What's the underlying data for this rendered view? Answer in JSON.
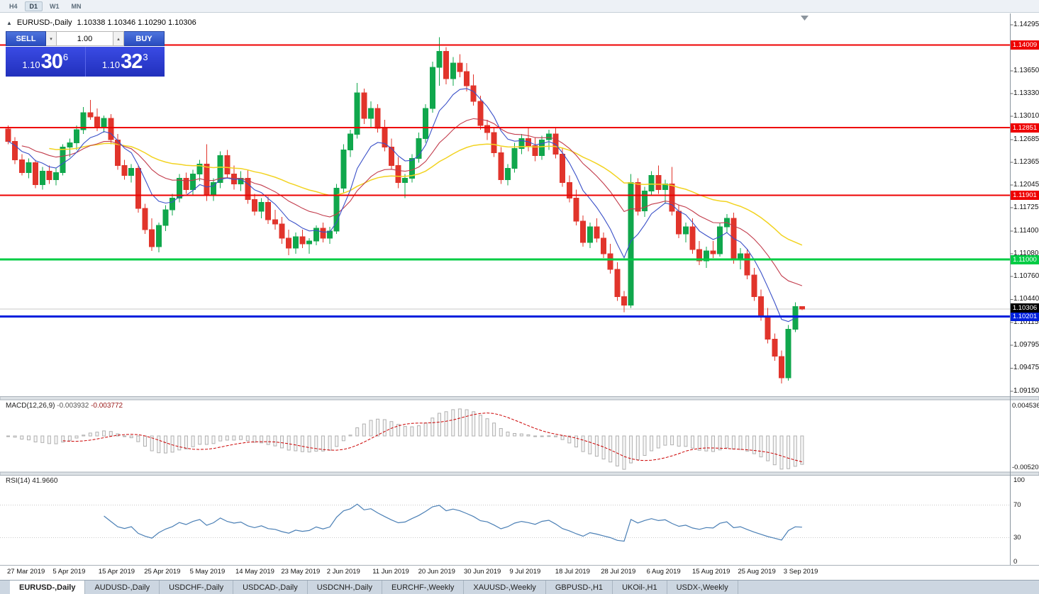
{
  "window": {
    "toolbar_periods": [
      "H4",
      "D1",
      "W1",
      "MN"
    ],
    "active_period": "D1"
  },
  "icons": {
    "collapse": "▲",
    "spinner_up": "▴",
    "spinner_down": "▾",
    "shift_marker": "▼"
  },
  "chart": {
    "symbol": "EURUSD-,Daily",
    "ohlc": "1.10338 1.10346 1.10290 1.10306"
  },
  "one_click": {
    "sell_label": "SELL",
    "buy_label": "BUY",
    "volume": "1.00",
    "bid": {
      "prefix": "1.10",
      "big": "30",
      "sup": "6"
    },
    "ask": {
      "prefix": "1.10",
      "big": "32",
      "sup": "3"
    }
  },
  "colors": {
    "bull": "#10a74c",
    "bear": "#e1342b",
    "ma_fast": "#3a50c8",
    "ma_mid": "#c23b4b",
    "ma_slow": "#f2d321",
    "macd_hist": "#b0b0b0",
    "macd_signal": "#cc0000",
    "rsi_line": "#4a7fb5",
    "hline_red": "#ee0000",
    "hline_green": "#00cc44",
    "hline_blue": "#0020dd",
    "bid_line": "#c8c8c8",
    "current_badge": "#000000"
  },
  "price_axis": {
    "labels": [
      "1.14295",
      "1.13650",
      "1.13330",
      "1.13010",
      "1.12685",
      "1.12365",
      "1.12045",
      "1.11725",
      "1.11400",
      "1.11080",
      "1.10760",
      "1.10440",
      "1.10115",
      "1.09795",
      "1.09475",
      "1.09150"
    ]
  },
  "hlines": [
    {
      "price": 1.14009,
      "label": "1.14009",
      "color": "#ee0000",
      "width": 2
    },
    {
      "price": 1.12851,
      "label": "1.12851",
      "color": "#ee0000",
      "width": 2
    },
    {
      "price": 1.11901,
      "label": "1.11901",
      "color": "#ee0000",
      "width": 2
    },
    {
      "price": 1.11,
      "label": "1.11000",
      "color": "#00cc44",
      "width": 3
    },
    {
      "price": 1.10201,
      "label": "1.10201",
      "color": "#0020dd",
      "width": 3
    }
  ],
  "current_price": {
    "label": "1.10306",
    "value": 1.10306
  },
  "macd": {
    "name": "MACD(12,26,9)",
    "main_value": "-0.003932",
    "signal_value": "-0.003772",
    "axis_max_label": "0.004536",
    "axis_min_label": "-0.005205",
    "fast": 12,
    "slow": 26,
    "signal": 9
  },
  "rsi": {
    "name": "RSI(14)",
    "value": "41.9660",
    "period": 14,
    "levels": [
      "100",
      "70",
      "30",
      "0"
    ],
    "guide_levels": [
      70,
      30
    ]
  },
  "time_axis": {
    "labels": [
      "27 Mar 2019",
      "5 Apr 2019",
      "15 Apr 2019",
      "25 Apr 2019",
      "5 May 2019",
      "14 May 2019",
      "23 May 2019",
      "2 Jun 2019",
      "11 Jun 2019",
      "20 Jun 2019",
      "30 Jun 2019",
      "9 Jul 2019",
      "18 Jul 2019",
      "28 Jul 2019",
      "6 Aug 2019",
      "15 Aug 2019",
      "25 Aug 2019",
      "3 Sep 2019"
    ]
  },
  "tabs": {
    "active_index": 0,
    "items": [
      "EURUSD-,Daily",
      "AUDUSD-,Daily",
      "USDCHF-,Daily",
      "USDCAD-,Daily",
      "USDCNH-,Daily",
      "EURCHF-,Weekly",
      "XAUUSD-,Weekly",
      "GBPUSD-,H1",
      "UKOil-,H1",
      "USDX-,Weekly"
    ]
  },
  "chart_data": {
    "type": "candlestick",
    "symbol": "EURUSD",
    "timeframe": "Daily",
    "ma_periods": {
      "fast": 8,
      "mid": 20,
      "slow": 45
    },
    "candles": [
      [
        1.1283,
        1.1288,
        1.1262,
        1.1266
      ],
      [
        1.1266,
        1.1272,
        1.1234,
        1.124
      ],
      [
        1.124,
        1.1248,
        1.1218,
        1.1222
      ],
      [
        1.1222,
        1.1242,
        1.1214,
        1.1236
      ],
      [
        1.1236,
        1.124,
        1.12,
        1.1205
      ],
      [
        1.1205,
        1.123,
        1.1198,
        1.1224
      ],
      [
        1.1224,
        1.1232,
        1.1206,
        1.1212
      ],
      [
        1.1212,
        1.1228,
        1.1204,
        1.1222
      ],
      [
        1.1222,
        1.1262,
        1.1218,
        1.1258
      ],
      [
        1.1258,
        1.127,
        1.1244,
        1.1264
      ],
      [
        1.1264,
        1.1288,
        1.1254,
        1.1282
      ],
      [
        1.1282,
        1.1314,
        1.1276,
        1.1306
      ],
      [
        1.1306,
        1.1324,
        1.1296,
        1.13
      ],
      [
        1.13,
        1.1312,
        1.128,
        1.1286
      ],
      [
        1.1286,
        1.1302,
        1.1278,
        1.1298
      ],
      [
        1.1298,
        1.1304,
        1.1262,
        1.1268
      ],
      [
        1.1268,
        1.1276,
        1.1226,
        1.1232
      ],
      [
        1.1232,
        1.124,
        1.1212,
        1.1218
      ],
      [
        1.1218,
        1.1234,
        1.1208,
        1.1228
      ],
      [
        1.1228,
        1.1232,
        1.1166,
        1.1172
      ],
      [
        1.1172,
        1.1178,
        1.1136,
        1.1142
      ],
      [
        1.1142,
        1.1158,
        1.1112,
        1.1118
      ],
      [
        1.1118,
        1.1152,
        1.111,
        1.1148
      ],
      [
        1.1148,
        1.1176,
        1.114,
        1.117
      ],
      [
        1.117,
        1.1192,
        1.1162,
        1.1186
      ],
      [
        1.1186,
        1.122,
        1.118,
        1.1214
      ],
      [
        1.1214,
        1.1222,
        1.1192,
        1.1198
      ],
      [
        1.1198,
        1.1226,
        1.119,
        1.122
      ],
      [
        1.122,
        1.124,
        1.121,
        1.1234
      ],
      [
        1.1234,
        1.1262,
        1.1182,
        1.119
      ],
      [
        1.119,
        1.1214,
        1.1182,
        1.1208
      ],
      [
        1.1208,
        1.1252,
        1.12,
        1.1246
      ],
      [
        1.1246,
        1.1254,
        1.1214,
        1.122
      ],
      [
        1.122,
        1.1232,
        1.1198,
        1.1206
      ],
      [
        1.1206,
        1.1224,
        1.1196,
        1.1214
      ],
      [
        1.1214,
        1.1226,
        1.1178,
        1.1184
      ],
      [
        1.1184,
        1.1192,
        1.1162,
        1.1168
      ],
      [
        1.1168,
        1.1186,
        1.1158,
        1.118
      ],
      [
        1.118,
        1.1188,
        1.115,
        1.1156
      ],
      [
        1.1156,
        1.117,
        1.1142,
        1.115
      ],
      [
        1.115,
        1.116,
        1.1122,
        1.113
      ],
      [
        1.113,
        1.1142,
        1.1106,
        1.1116
      ],
      [
        1.1116,
        1.1138,
        1.1108,
        1.1132
      ],
      [
        1.1132,
        1.1142,
        1.1116,
        1.1122
      ],
      [
        1.1122,
        1.113,
        1.1108,
        1.1126
      ],
      [
        1.1126,
        1.1148,
        1.112,
        1.1144
      ],
      [
        1.1144,
        1.1152,
        1.1124,
        1.113
      ],
      [
        1.113,
        1.1146,
        1.1122,
        1.114
      ],
      [
        1.114,
        1.1206,
        1.1136,
        1.12
      ],
      [
        1.12,
        1.1262,
        1.1194,
        1.1254
      ],
      [
        1.1254,
        1.1282,
        1.1244,
        1.1276
      ],
      [
        1.1276,
        1.1348,
        1.127,
        1.1334
      ],
      [
        1.1334,
        1.134,
        1.129,
        1.1298
      ],
      [
        1.1298,
        1.1322,
        1.1286,
        1.1312
      ],
      [
        1.1312,
        1.1318,
        1.1278,
        1.1284
      ],
      [
        1.1284,
        1.1296,
        1.1252,
        1.1258
      ],
      [
        1.1258,
        1.127,
        1.1226,
        1.1232
      ],
      [
        1.1232,
        1.1244,
        1.12,
        1.1208
      ],
      [
        1.1208,
        1.122,
        1.1186,
        1.1214
      ],
      [
        1.1214,
        1.1248,
        1.1208,
        1.1242
      ],
      [
        1.1242,
        1.1278,
        1.1236,
        1.127
      ],
      [
        1.127,
        1.1318,
        1.1264,
        1.1312
      ],
      [
        1.1312,
        1.1378,
        1.1306,
        1.137
      ],
      [
        1.137,
        1.1412,
        1.1344,
        1.1392
      ],
      [
        1.1392,
        1.1398,
        1.1346,
        1.1354
      ],
      [
        1.1354,
        1.1384,
        1.1344,
        1.1376
      ],
      [
        1.1376,
        1.1388,
        1.1356,
        1.1364
      ],
      [
        1.1364,
        1.1376,
        1.1336,
        1.1344
      ],
      [
        1.1344,
        1.136,
        1.1316,
        1.1322
      ],
      [
        1.1322,
        1.133,
        1.1282,
        1.1288
      ],
      [
        1.1288,
        1.1296,
        1.1268,
        1.1278
      ],
      [
        1.1278,
        1.1286,
        1.1244,
        1.125
      ],
      [
        1.125,
        1.1258,
        1.1206,
        1.1212
      ],
      [
        1.1212,
        1.1234,
        1.1204,
        1.1228
      ],
      [
        1.1228,
        1.1264,
        1.1222,
        1.1256
      ],
      [
        1.1256,
        1.1276,
        1.1248,
        1.127
      ],
      [
        1.127,
        1.1286,
        1.1252,
        1.126
      ],
      [
        1.126,
        1.1272,
        1.1238,
        1.1246
      ],
      [
        1.1246,
        1.1274,
        1.124,
        1.1268
      ],
      [
        1.1268,
        1.1282,
        1.1254,
        1.1276
      ],
      [
        1.1276,
        1.1284,
        1.1242,
        1.1248
      ],
      [
        1.1248,
        1.1256,
        1.1202,
        1.1208
      ],
      [
        1.1208,
        1.1218,
        1.118,
        1.1186
      ],
      [
        1.1186,
        1.1198,
        1.1148,
        1.1154
      ],
      [
        1.1154,
        1.1162,
        1.1118,
        1.1124
      ],
      [
        1.1124,
        1.1152,
        1.1116,
        1.1146
      ],
      [
        1.1146,
        1.1158,
        1.1124,
        1.113
      ],
      [
        1.113,
        1.1138,
        1.1102,
        1.1108
      ],
      [
        1.1108,
        1.1122,
        1.108,
        1.1086
      ],
      [
        1.1086,
        1.1096,
        1.1042,
        1.1048
      ],
      [
        1.1048,
        1.1056,
        1.1026,
        1.1036
      ],
      [
        1.1036,
        1.122,
        1.1032,
        1.1208
      ],
      [
        1.1208,
        1.1214,
        1.1162,
        1.1168
      ],
      [
        1.1168,
        1.1202,
        1.116,
        1.1196
      ],
      [
        1.1196,
        1.1224,
        1.119,
        1.1218
      ],
      [
        1.1218,
        1.1232,
        1.1192,
        1.1198
      ],
      [
        1.1198,
        1.1212,
        1.1178,
        1.1206
      ],
      [
        1.1206,
        1.123,
        1.1162,
        1.1168
      ],
      [
        1.1168,
        1.1176,
        1.113,
        1.1136
      ],
      [
        1.1136,
        1.1152,
        1.1124,
        1.1146
      ],
      [
        1.1146,
        1.1158,
        1.1108,
        1.1114
      ],
      [
        1.1114,
        1.1126,
        1.1092,
        1.1098
      ],
      [
        1.1098,
        1.1118,
        1.1088,
        1.1112
      ],
      [
        1.1112,
        1.1126,
        1.1102,
        1.1108
      ],
      [
        1.1108,
        1.1152,
        1.1104,
        1.1146
      ],
      [
        1.1146,
        1.1164,
        1.1138,
        1.1158
      ],
      [
        1.1158,
        1.1166,
        1.1094,
        1.11
      ],
      [
        1.11,
        1.1116,
        1.1086,
        1.1108
      ],
      [
        1.1108,
        1.1114,
        1.1072,
        1.1078
      ],
      [
        1.1078,
        1.1088,
        1.1042,
        1.1048
      ],
      [
        1.1048,
        1.1058,
        1.1014,
        1.102
      ],
      [
        1.102,
        1.1032,
        1.0982,
        1.0988
      ],
      [
        1.0988,
        1.0996,
        1.0958,
        1.0964
      ],
      [
        1.0964,
        1.0972,
        1.0926,
        1.0934
      ],
      [
        1.0934,
        1.1008,
        1.093,
        1.1002
      ],
      [
        1.1002,
        1.104,
        1.0998,
        1.1034
      ],
      [
        1.10338,
        1.10346,
        1.1029,
        1.10306
      ]
    ]
  }
}
